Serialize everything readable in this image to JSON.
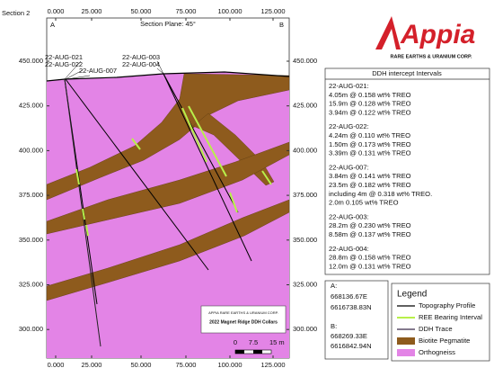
{
  "header": {
    "section": "Section 2",
    "plane": "Section Plane: 45°",
    "end_a": "A",
    "end_b": "B"
  },
  "axes": {
    "x_labels": [
      "0.000",
      "25.000",
      "50.000",
      "75.000",
      "100.000",
      "125.000"
    ],
    "y_labels": [
      "450.000",
      "425.000",
      "400.000",
      "375.000",
      "350.000",
      "325.000",
      "300.000"
    ]
  },
  "holes": [
    "22-AUG-021",
    "22-AUG-022",
    "22-AUG-007",
    "22-AUG-003",
    "22-AUG-004"
  ],
  "logo": {
    "name": "Appia",
    "tagline": "RARE EARTHS & URANIUM CORP."
  },
  "intercepts": {
    "title": "DDH intercept Intervals",
    "groups": [
      {
        "hole": "22-AUG-021:",
        "lines": [
          "4.05m @ 0.158 wt% TREO",
          "15.9m @ 0.128 wt% TREO",
          "3.94m @ 0.122 wt% TREO"
        ]
      },
      {
        "hole": "22-AUG-022:",
        "lines": [
          "4.24m @ 0.110 wt% TREO",
          "1.50m @ 0.173 wt% TREO",
          "3.39m @ 0.131 wt% TREO"
        ]
      },
      {
        "hole": "22-AUG-007:",
        "lines": [
          "3.84m @ 0.141 wt% TREO",
          "23.5m @ 0.182 wt% TREO",
          "including 4m @ 0.318 wt% TREO.",
          "2.0m  0.105 wt% TREO"
        ]
      },
      {
        "hole": "22-AUG-003:",
        "lines": [
          "28.2m @ 0.230 wt% TREO",
          "8.58m @ 0.137 wt% TREO"
        ]
      },
      {
        "hole": "22-AUG-004:",
        "lines": [
          "28.8m @ 0.158 wt% TREO",
          "12.0m @ 0.131 wt% TREO"
        ]
      }
    ]
  },
  "coordinates": {
    "a": {
      "label": "A:",
      "east": "668136.67E",
      "north": "6616738.83N"
    },
    "b": {
      "label": "B:",
      "east": "668269.33E",
      "north": "6616842.94N"
    }
  },
  "legend": {
    "title": "Legend",
    "items": [
      "Topography Profile",
      "REE Bearing Interval",
      "DDH Trace",
      "Biotite Pegmatite",
      "Orthogneiss"
    ]
  },
  "scale": {
    "labels": [
      "0",
      "7.5",
      "15 m"
    ]
  },
  "title_block": {
    "company": "APPIA RARE EARTHS & URANIUM CORP.",
    "title": "2022 Magnet Ridge DDH Collars"
  }
}
